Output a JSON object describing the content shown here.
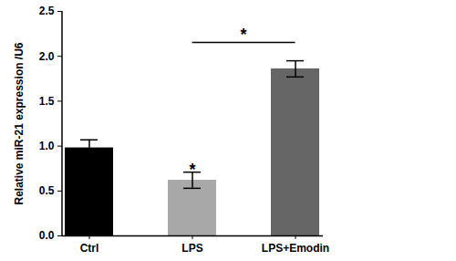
{
  "chart_data": {
    "type": "bar",
    "categories": [
      "Ctrl",
      "LPS",
      "LPS+Emodin"
    ],
    "values": [
      0.98,
      0.62,
      1.86
    ],
    "errors": [
      0.09,
      0.09,
      0.09
    ],
    "colors": [
      "#000000",
      "#a8a8a8",
      "#666666"
    ],
    "y_label": "Relative miR-21 expression /U6",
    "ylim": [
      0,
      2.5
    ],
    "yticks": [
      {
        "value": 0,
        "label": "0.0"
      },
      0.5,
      {
        "value": 1,
        "label": "1.0"
      },
      1.5,
      {
        "value": 2,
        "label": "2.0"
      },
      2.5
    ],
    "grid": false,
    "annotations": [
      {
        "text": "*",
        "x": "LPS",
        "y": 0.78
      },
      {
        "text": "*",
        "x1": "LPS",
        "x2": "LPS+Emodin",
        "y": 2.15
      }
    ]
  }
}
